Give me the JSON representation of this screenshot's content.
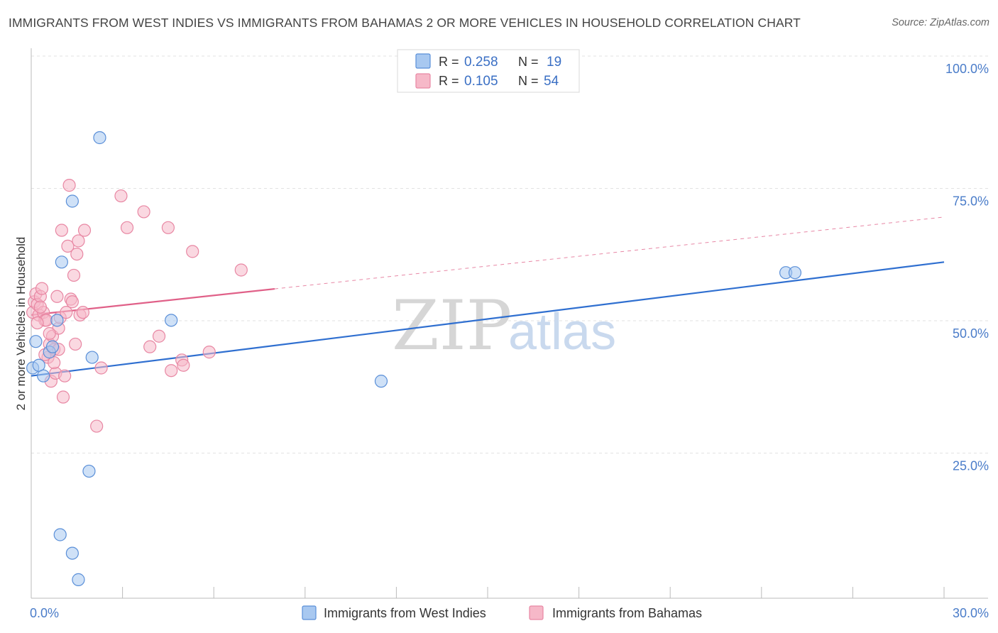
{
  "chart_data": {
    "type": "scatter",
    "title": "IMMIGRANTS FROM WEST INDIES VS IMMIGRANTS FROM BAHAMAS 2 OR MORE VEHICLES IN HOUSEHOLD CORRELATION CHART",
    "source": "Source: ZipAtlas.com",
    "xlabel": "",
    "ylabel": "2 or more Vehicles in Household",
    "xlim": [
      0,
      30
    ],
    "ylim": [
      0,
      100
    ],
    "x_tick_labels": [
      "0.0%",
      "30.0%"
    ],
    "y_tick_labels": [
      "100.0%",
      "75.0%",
      "50.0%",
      "25.0%"
    ],
    "y_tick_values": [
      100,
      75,
      50,
      25
    ],
    "grid": true,
    "legend_placement": "top-center",
    "watermark": {
      "zip": "ZIP",
      "atlas": "atlas"
    },
    "series": [
      {
        "name": "Immigrants from West Indies",
        "color": "#a8c8f0",
        "stroke": "#5a8fd8",
        "line_color": "#2f6fd0",
        "stat": {
          "r_label": "R =",
          "r": "0.258",
          "n_label": "N =",
          "n": "19"
        },
        "trend": {
          "x0": 0,
          "y0": 42.0,
          "x1": 30,
          "y1": 63.5,
          "dashed_from": null
        },
        "points": [
          [
            0.05,
            43.5
          ],
          [
            0.15,
            48.5
          ],
          [
            0.25,
            44
          ],
          [
            0.4,
            42
          ],
          [
            0.6,
            46.5
          ],
          [
            0.7,
            47.5
          ],
          [
            0.85,
            52.5
          ],
          [
            1.0,
            63.5
          ],
          [
            1.35,
            75
          ],
          [
            2.25,
            87
          ],
          [
            2.0,
            45.5
          ],
          [
            4.6,
            52.5
          ],
          [
            11.5,
            41
          ],
          [
            24.8,
            61.5
          ],
          [
            25.1,
            61.5
          ],
          [
            1.9,
            24
          ],
          [
            0.95,
            12
          ],
          [
            1.35,
            8.5
          ],
          [
            1.55,
            3.5
          ]
        ]
      },
      {
        "name": "Immigrants from Bahamas",
        "color": "#f6b8c8",
        "stroke": "#e887a3",
        "line_color": "#e06088",
        "stat": {
          "r_label": "R =",
          "r": "0.105",
          "n_label": "N =",
          "n": "54"
        },
        "trend": {
          "x0": 0,
          "y0": 53.5,
          "x1": 30,
          "y1": 72.0,
          "solid_until": 8.0
        },
        "points": [
          [
            0.05,
            54
          ],
          [
            0.1,
            56
          ],
          [
            0.15,
            57.5
          ],
          [
            0.2,
            55.5
          ],
          [
            0.25,
            53.5
          ],
          [
            0.3,
            57
          ],
          [
            0.35,
            58.5
          ],
          [
            0.4,
            54
          ],
          [
            0.45,
            52.5
          ],
          [
            0.5,
            52.5
          ],
          [
            0.55,
            45.5
          ],
          [
            0.6,
            48
          ],
          [
            0.65,
            41
          ],
          [
            0.7,
            49.5
          ],
          [
            0.75,
            47
          ],
          [
            0.8,
            42.5
          ],
          [
            0.85,
            57
          ],
          [
            0.9,
            51
          ],
          [
            0.95,
            53
          ],
          [
            1.0,
            69.5
          ],
          [
            1.05,
            38
          ],
          [
            1.1,
            42
          ],
          [
            1.15,
            54
          ],
          [
            1.2,
            66.5
          ],
          [
            1.3,
            56.5
          ],
          [
            1.35,
            56
          ],
          [
            1.25,
            78
          ],
          [
            1.4,
            61
          ],
          [
            1.45,
            48
          ],
          [
            1.5,
            65
          ],
          [
            1.55,
            67.5
          ],
          [
            1.6,
            53.5
          ],
          [
            1.7,
            54
          ],
          [
            1.75,
            69.5
          ],
          [
            2.15,
            32.5
          ],
          [
            2.3,
            43.5
          ],
          [
            2.95,
            76
          ],
          [
            3.15,
            70
          ],
          [
            3.7,
            73
          ],
          [
            3.9,
            47.5
          ],
          [
            4.2,
            49.5
          ],
          [
            4.5,
            70
          ],
          [
            4.6,
            43
          ],
          [
            4.95,
            45
          ],
          [
            5.0,
            44
          ],
          [
            5.3,
            65.5
          ],
          [
            5.85,
            46.5
          ],
          [
            6.9,
            62
          ],
          [
            0.2,
            52
          ],
          [
            0.3,
            55
          ],
          [
            0.45,
            46
          ],
          [
            0.6,
            50
          ],
          [
            0.75,
            44.5
          ],
          [
            0.9,
            47
          ]
        ]
      }
    ]
  }
}
